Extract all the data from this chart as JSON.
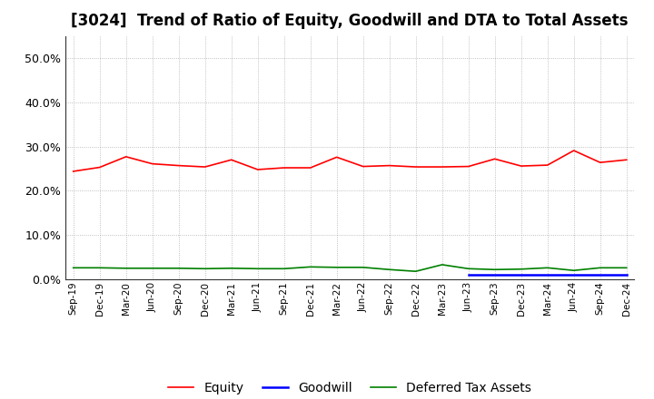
{
  "title": "[3024]  Trend of Ratio of Equity, Goodwill and DTA to Total Assets",
  "x_labels": [
    "Sep-19",
    "Dec-19",
    "Mar-20",
    "Jun-20",
    "Sep-20",
    "Dec-20",
    "Mar-21",
    "Jun-21",
    "Sep-21",
    "Dec-21",
    "Mar-22",
    "Jun-22",
    "Sep-22",
    "Dec-22",
    "Mar-23",
    "Jun-23",
    "Sep-23",
    "Dec-23",
    "Mar-24",
    "Jun-24",
    "Sep-24",
    "Dec-24"
  ],
  "equity": [
    0.244,
    0.253,
    0.277,
    0.261,
    0.257,
    0.254,
    0.27,
    0.248,
    0.252,
    0.252,
    0.276,
    0.255,
    0.257,
    0.254,
    0.254,
    0.255,
    0.272,
    0.256,
    0.258,
    0.291,
    0.264,
    0.27
  ],
  "goodwill": [
    null,
    null,
    null,
    null,
    null,
    null,
    null,
    null,
    null,
    null,
    null,
    null,
    null,
    null,
    null,
    0.01,
    0.01,
    0.01,
    0.01,
    0.01,
    0.01,
    0.01
  ],
  "dta": [
    0.026,
    0.026,
    0.025,
    0.025,
    0.025,
    0.024,
    0.025,
    0.024,
    0.024,
    0.028,
    0.027,
    0.027,
    0.022,
    0.018,
    0.033,
    0.024,
    0.022,
    0.023,
    0.026,
    0.02,
    0.026,
    0.026
  ],
  "equity_color": "#ff0000",
  "goodwill_color": "#0000ff",
  "dta_color": "#008000",
  "ylim": [
    0.0,
    0.55
  ],
  "yticks": [
    0.0,
    0.1,
    0.2,
    0.3,
    0.4,
    0.5
  ],
  "background_color": "#ffffff",
  "grid_color": "#999999",
  "title_fontsize": 12,
  "legend_labels": [
    "Equity",
    "Goodwill",
    "Deferred Tax Assets"
  ]
}
